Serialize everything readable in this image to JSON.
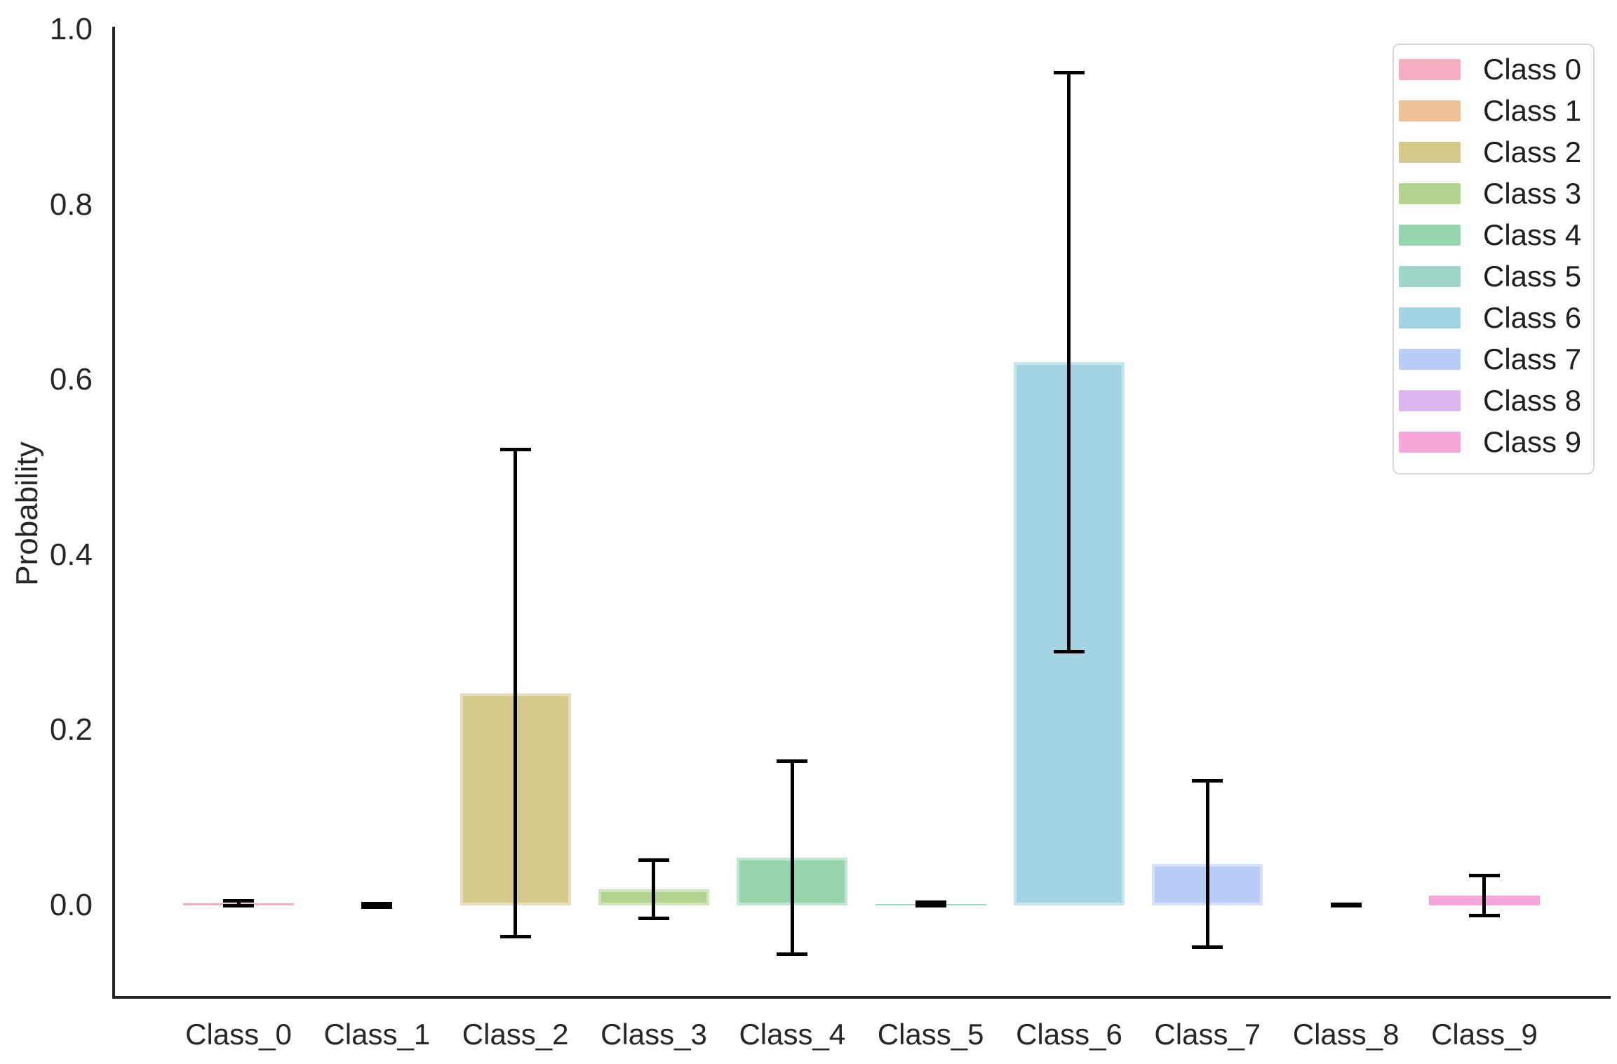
{
  "colors": {
    "background": "#ffffff",
    "spine": "#222222",
    "tick_text": "#262626",
    "error_bar": "#000000",
    "legend_border": "#d8d8d8"
  },
  "chart_data": {
    "type": "bar",
    "title": "",
    "xlabel": "",
    "ylabel": "Probability",
    "categories": [
      "Class_0",
      "Class_1",
      "Class_2",
      "Class_3",
      "Class_4",
      "Class_5",
      "Class_6",
      "Class_7",
      "Class_8",
      "Class_9"
    ],
    "values": [
      0.002,
      0.0,
      0.242,
      0.018,
      0.054,
      0.001,
      0.62,
      0.047,
      0.0,
      0.011
    ],
    "error_bars": [
      0.003,
      0.002,
      0.278,
      0.033,
      0.11,
      0.002,
      0.331,
      0.095,
      0.001,
      0.023
    ],
    "palette": [
      "#f5afc0",
      "#efc295",
      "#d5ca8c",
      "#b2d48f",
      "#96d5ad",
      "#9ed6c9",
      "#a2d4e1",
      "#b7cdf5",
      "#dcb7f2",
      "#f7a7da"
    ],
    "ylim": [
      -0.107,
      1.0
    ],
    "yticks": [
      {
        "value": 0.0,
        "label": "0.0"
      },
      {
        "value": 0.2,
        "label": "0.2"
      },
      {
        "value": 0.4,
        "label": "0.4"
      },
      {
        "value": 0.6,
        "label": "0.6"
      },
      {
        "value": 0.8,
        "label": "0.8"
      },
      {
        "value": 1.0,
        "label": "1.0"
      }
    ],
    "grid": false,
    "legend": {
      "position": "upper right",
      "labels": [
        "Class 0",
        "Class 1",
        "Class 2",
        "Class 3",
        "Class 4",
        "Class 5",
        "Class 6",
        "Class 7",
        "Class 8",
        "Class 9"
      ]
    }
  }
}
